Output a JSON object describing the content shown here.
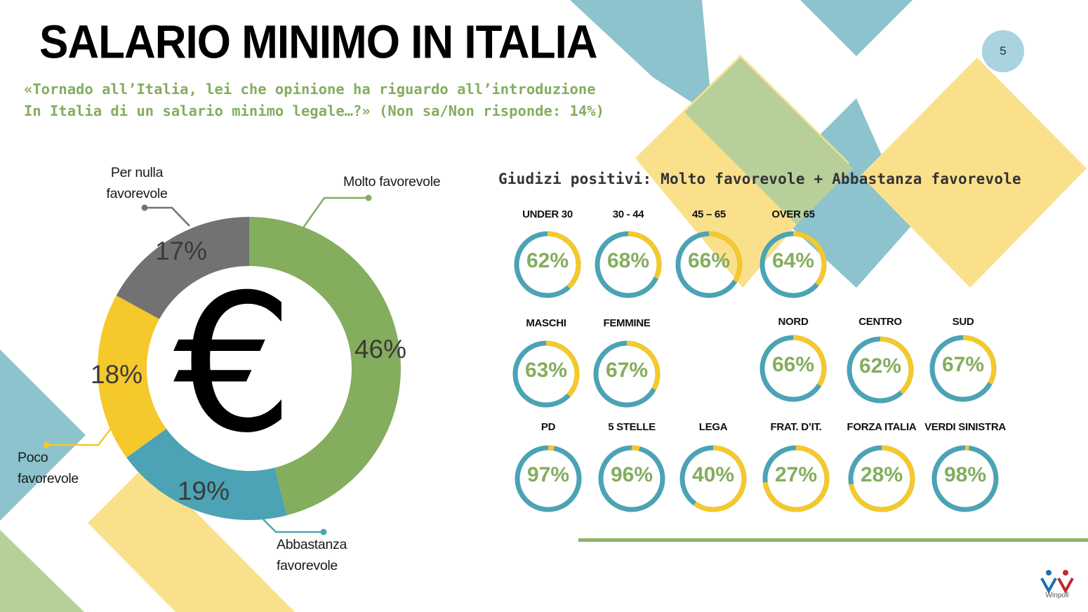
{
  "page": {
    "title": "SALARIO MINIMO IN ITALIA",
    "page_number": "5",
    "question_line1": "«Tornado all’Italia, lei che opinione ha riguardo all’introduzione",
    "question_line2": "In Italia di un salario minimo legale…?» (Non sa/Non risponde: 14%)",
    "subtitle": "Giudizi positivi: Molto favorevole + Abbastanza favorevole",
    "logo_text": "Winpoll"
  },
  "colors": {
    "green": "#84ad5e",
    "teal": "#4ba3b5",
    "yellow": "#f5c82b",
    "grey": "#727272",
    "ring_track": "#4ba3b5",
    "ring_fill": "#f5c82b"
  },
  "chart_data": [
    {
      "type": "pie",
      "center_symbol": "€",
      "slices": [
        {
          "label": "Molto favorevole",
          "value": 46,
          "display": "46%",
          "color": "#84ad5e"
        },
        {
          "label": "Abbastanza favorevole",
          "value": 19,
          "display": "19%",
          "color": "#4ba3b5"
        },
        {
          "label": "Poco favorevole",
          "value": 18,
          "display": "18%",
          "color": "#f5c82b"
        },
        {
          "label": "Per nulla favorevole",
          "value": 17,
          "display": "17%",
          "color": "#727272"
        }
      ]
    },
    {
      "type": "pie",
      "groups": [
        {
          "label": "UNDER 30",
          "value": 62,
          "display": "62%"
        },
        {
          "label": "30 - 44",
          "value": 68,
          "display": "68%"
        },
        {
          "label": "45 – 65",
          "value": 66,
          "display": "66%"
        },
        {
          "label": "OVER 65",
          "value": 64,
          "display": "64%"
        },
        {
          "label": "MASCHI",
          "value": 63,
          "display": "63%"
        },
        {
          "label": "FEMMINE",
          "value": 67,
          "display": "67%"
        },
        {
          "label": "NORD",
          "value": 66,
          "display": "66%"
        },
        {
          "label": "CENTRO",
          "value": 62,
          "display": "62%"
        },
        {
          "label": "SUD",
          "value": 67,
          "display": "67%"
        },
        {
          "label": "PD",
          "value": 97,
          "display": "97%"
        },
        {
          "label": "5 STELLE",
          "value": 96,
          "display": "96%"
        },
        {
          "label": "LEGA",
          "value": 40,
          "display": "40%"
        },
        {
          "label": "FRAT. D’IT.",
          "value": 27,
          "display": "27%"
        },
        {
          "label": "FORZA ITALIA",
          "value": 28,
          "display": "28%"
        },
        {
          "label": "VERDI SINISTRA",
          "value": 98,
          "display": "98%"
        }
      ]
    }
  ]
}
